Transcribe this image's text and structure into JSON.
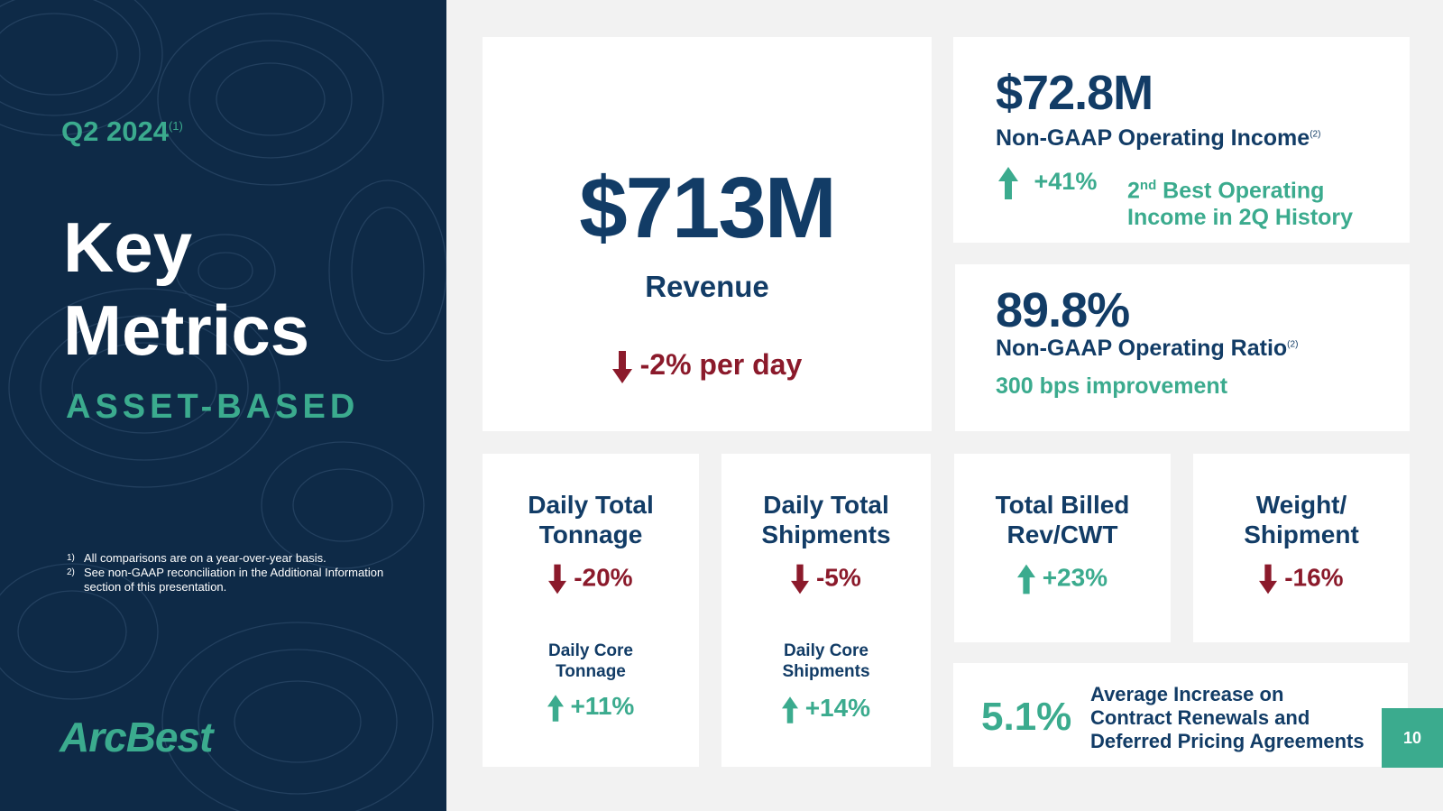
{
  "sidebar": {
    "period": "Q2 2024",
    "period_footnote": "(1)",
    "title_line1": "Key",
    "title_line2": "Metrics",
    "subtitle": "ASSET-BASED",
    "notes": [
      {
        "num": "1)",
        "text": "All comparisons are on a year-over-year basis."
      },
      {
        "num": "2)",
        "text": "See non-GAAP reconciliation in the Additional Information section of this presentation."
      }
    ],
    "logo": "ArcBest"
  },
  "revenue": {
    "value": "$713M",
    "label": "Revenue",
    "change": "-2% per day"
  },
  "operating_income": {
    "value": "$72.8M",
    "label": "Non-GAAP Operating Income",
    "footnote": "(2)",
    "change": "+41%",
    "note_prefix": "2",
    "note_sup": "nd",
    "note_line1_rest": " Best Operating",
    "note_line2": "Income in 2Q History"
  },
  "operating_ratio": {
    "value": "89.8%",
    "label": "Non-GAAP Operating Ratio",
    "footnote": "(2)",
    "note": "300 bps improvement"
  },
  "tonnage": {
    "title_line1": "Daily Total",
    "title_line2": "Tonnage",
    "change": "-20%",
    "core_line1": "Daily Core",
    "core_line2": "Tonnage",
    "core_change": "+11%"
  },
  "shipments": {
    "title_line1": "Daily Total",
    "title_line2": "Shipments",
    "change": "-5%",
    "core_line1": "Daily Core",
    "core_line2": "Shipments",
    "core_change": "+14%"
  },
  "billed_rev": {
    "title_line1": "Total Billed",
    "title_line2": "Rev/CWT",
    "change": "+23%"
  },
  "weight": {
    "title_line1": "Weight/",
    "title_line2": "Shipment",
    "change": "-16%"
  },
  "contract": {
    "value": "5.1%",
    "line1": "Average Increase on",
    "line2": "Contract Renewals and",
    "line3": "Deferred Pricing Agreements"
  },
  "page_number": "10",
  "colors": {
    "navy": "#123c66",
    "teal": "#3bab8e",
    "red": "#8b1a2b",
    "sidebar": "#0e2a47"
  }
}
